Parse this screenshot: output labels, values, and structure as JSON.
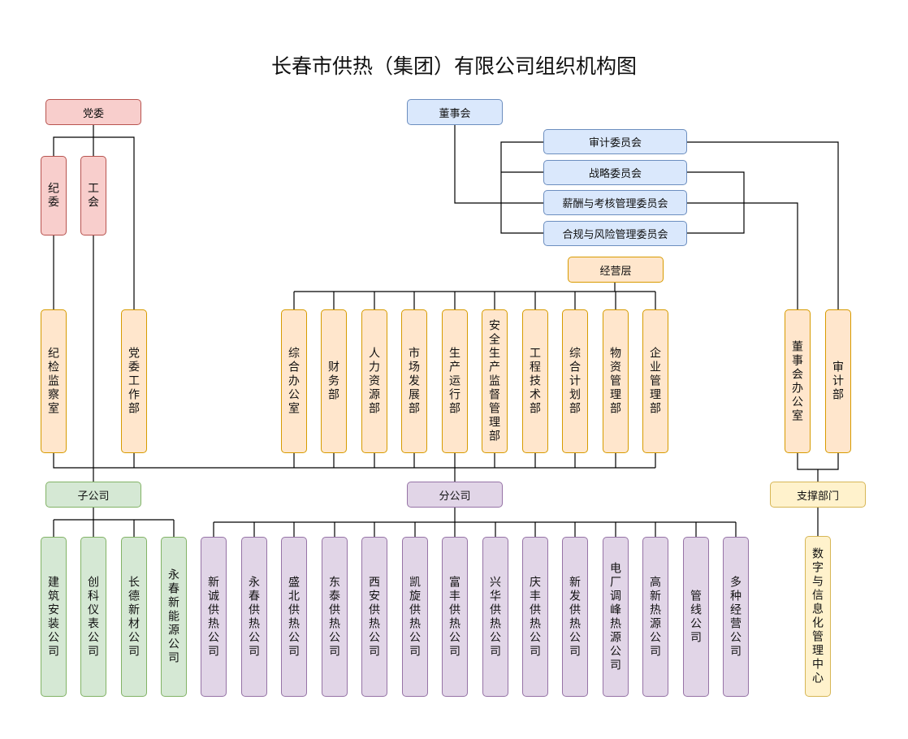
{
  "title": "长春市供热（集团）有限公司组织机构图",
  "colors": {
    "party": {
      "fill": "#f8cecc",
      "stroke": "#b85450"
    },
    "board": {
      "fill": "#dae8fc",
      "stroke": "#6c8ebf"
    },
    "dept": {
      "fill": "#ffe6cc",
      "stroke": "#d79b00"
    },
    "subsidiary": {
      "fill": "#d5e8d4",
      "stroke": "#82b366"
    },
    "branch": {
      "fill": "#e1d5e7",
      "stroke": "#9673a6"
    },
    "support": {
      "fill": "#fff2cc",
      "stroke": "#d6b656"
    },
    "line": "#000000"
  },
  "party": {
    "label": "党委",
    "units": [
      "纪委",
      "工会"
    ],
    "departments": [
      "纪检监察室",
      "党委工作部"
    ]
  },
  "board": {
    "label": "董事会",
    "committees": [
      "审计委员会",
      "战略委员会",
      "薪酬与考核管理委员会",
      "合规与风险管理委员会"
    ],
    "departments": [
      "董事会办公室",
      "审计部"
    ]
  },
  "management": {
    "label": "经营层",
    "departments": [
      "综合办公室",
      "财务部",
      "人力资源部",
      "市场发展部",
      "生产运行部",
      "安全生产监督管理部",
      "工程技术部",
      "综合计划部",
      "物资管理部",
      "企业管理部"
    ]
  },
  "subsidiaries": {
    "label": "子公司",
    "companies": [
      "建筑安装公司",
      "创科仪表公司",
      "长德新材公司",
      "永春新能源公司"
    ]
  },
  "branches": {
    "label": "分公司",
    "companies": [
      "新诚供热公司",
      "永春供热公司",
      "盛北供热公司",
      "东泰供热公司",
      "西安供热公司",
      "凯旋供热公司",
      "富丰供热公司",
      "兴华供热公司",
      "庆丰供热公司",
      "新发供热公司",
      "电厂调峰热源公司",
      "高新热源公司",
      "管线公司",
      "多种经营公司"
    ]
  },
  "support": {
    "label": "支撑部门",
    "units": [
      "数字与信息化管理中心"
    ]
  }
}
